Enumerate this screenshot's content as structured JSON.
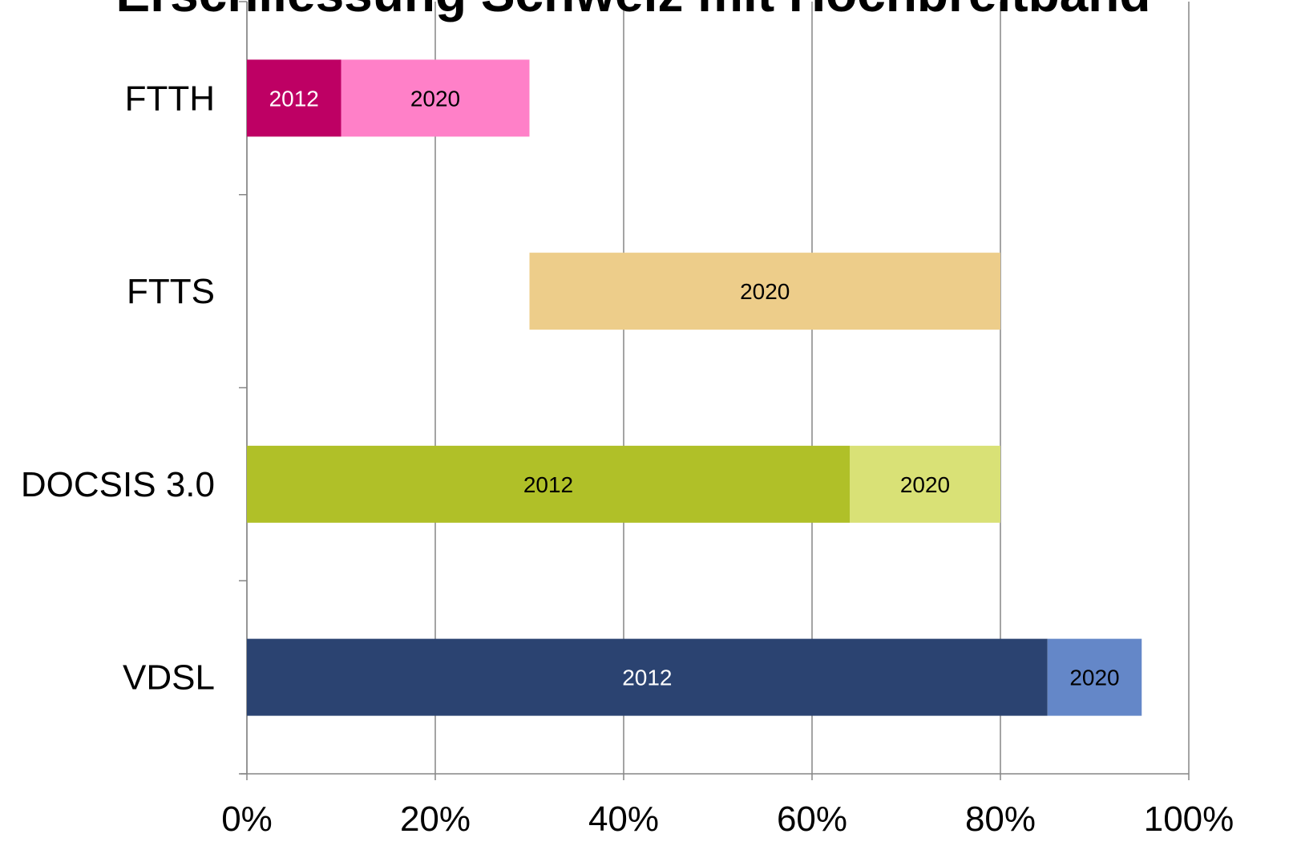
{
  "chart_data": {
    "type": "stacked-barh",
    "title": "Erschliessung Schweiz mit Hochbreitband",
    "categories": [
      "FTTH",
      "FTTS",
      "DOCSIS 3.0",
      "VDSL"
    ],
    "series": [
      {
        "name": "2012",
        "values": [
          10,
          30,
          64,
          85
        ],
        "colors": [
          "#be0064",
          null,
          "#b0c028",
          "#2b4371"
        ]
      },
      {
        "name": "2020",
        "values": [
          20,
          50,
          16,
          10
        ],
        "colors": [
          "#ff80c8",
          "#edcd8a",
          "#d9e176",
          "#6487c8"
        ]
      }
    ],
    "xlim": [
      0,
      100
    ],
    "xticks": [
      {
        "value": 0,
        "label": "0%"
      },
      {
        "value": 20,
        "label": "20%"
      },
      {
        "value": 40,
        "label": "40%"
      },
      {
        "value": 60,
        "label": "60%"
      },
      {
        "value": 80,
        "label": "80%"
      },
      {
        "value": 100,
        "label": "100%"
      }
    ],
    "grid": true
  }
}
